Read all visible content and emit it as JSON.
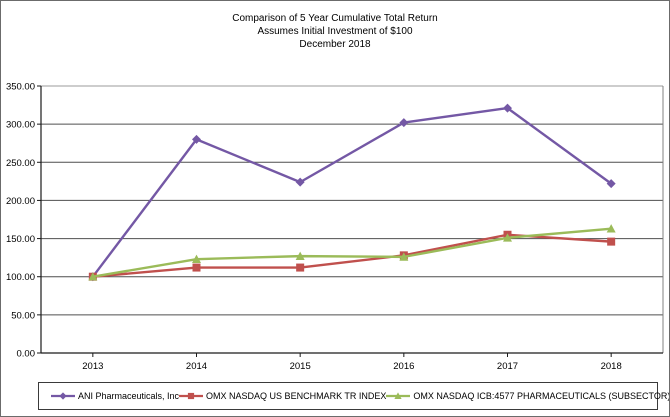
{
  "chart_data": {
    "type": "line",
    "title_lines": [
      "Comparison of 5 Year Cumulative Total Return",
      "Assumes Initial Investment of $100",
      "December 2018"
    ],
    "categories": [
      "2013",
      "2014",
      "2015",
      "2016",
      "2017",
      "2018"
    ],
    "series": [
      {
        "name": "ANI Pharmaceuticals, Inc",
        "marker": "diamond",
        "color": "#7458A5",
        "values": [
          100,
          280,
          224,
          302,
          321,
          222
        ]
      },
      {
        "name": "OMX NASDAQ US BENCHMARK TR INDEX",
        "marker": "square",
        "color": "#C0504D",
        "values": [
          100,
          112,
          112,
          128,
          155,
          146
        ]
      },
      {
        "name": "OMX NASDAQ ICB:4577 PHARMACEUTICALS (SUBSECTOR)",
        "marker": "triangle",
        "color": "#9BBB59",
        "values": [
          100,
          123,
          127,
          126,
          151,
          163
        ]
      }
    ],
    "ylim": [
      0,
      350
    ],
    "ytick_step": 50,
    "ytick_labels": [
      "0.00",
      "50.00",
      "100.00",
      "150.00",
      "200.00",
      "250.00",
      "300.00",
      "350.00"
    ],
    "xlabel": "",
    "ylabel": "",
    "grid": true,
    "legend_position": "bottom",
    "colors": {
      "grid": "#4f4f4f",
      "top_gridline": "#9b9b9b",
      "axis": "#1a1a1a",
      "plot_right_border": "#808080",
      "text": "#000000"
    }
  }
}
